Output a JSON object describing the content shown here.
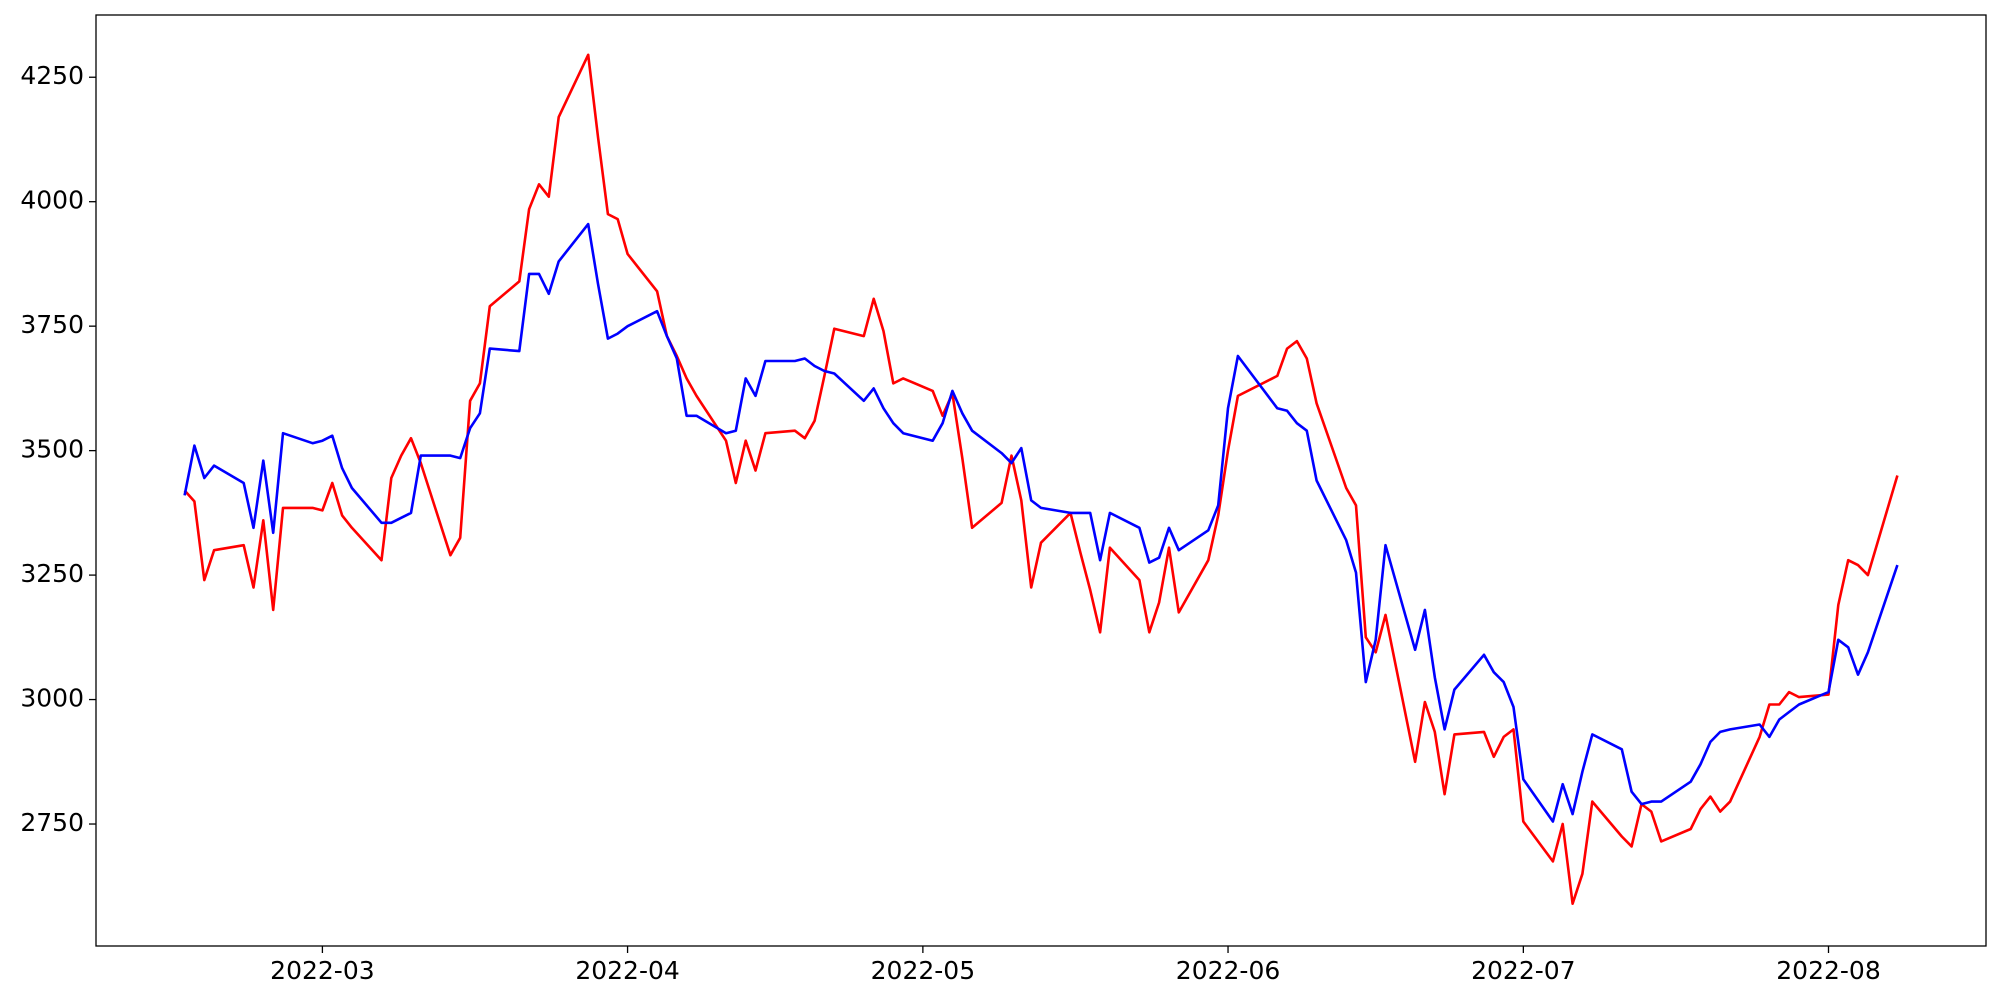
{
  "chart_data": {
    "type": "line",
    "x": [
      "2022-02-15",
      "2022-02-16",
      "2022-02-17",
      "2022-02-18",
      "2022-02-21",
      "2022-02-22",
      "2022-02-23",
      "2022-02-24",
      "2022-02-25",
      "2022-02-28",
      "2022-03-01",
      "2022-03-02",
      "2022-03-03",
      "2022-03-04",
      "2022-03-07",
      "2022-03-08",
      "2022-03-09",
      "2022-03-10",
      "2022-03-11",
      "2022-03-14",
      "2022-03-15",
      "2022-03-16",
      "2022-03-17",
      "2022-03-18",
      "2022-03-21",
      "2022-03-22",
      "2022-03-23",
      "2022-03-24",
      "2022-03-25",
      "2022-03-28",
      "2022-03-29",
      "2022-03-30",
      "2022-03-31",
      "2022-04-01",
      "2022-04-04",
      "2022-04-05",
      "2022-04-06",
      "2022-04-07",
      "2022-04-08",
      "2022-04-11",
      "2022-04-12",
      "2022-04-13",
      "2022-04-14",
      "2022-04-15",
      "2022-04-18",
      "2022-04-19",
      "2022-04-20",
      "2022-04-21",
      "2022-04-22",
      "2022-04-25",
      "2022-04-26",
      "2022-04-27",
      "2022-04-28",
      "2022-04-29",
      "2022-05-02",
      "2022-05-03",
      "2022-05-04",
      "2022-05-05",
      "2022-05-06",
      "2022-05-09",
      "2022-05-10",
      "2022-05-11",
      "2022-05-12",
      "2022-05-13",
      "2022-05-16",
      "2022-05-17",
      "2022-05-18",
      "2022-05-19",
      "2022-05-20",
      "2022-05-23",
      "2022-05-24",
      "2022-05-25",
      "2022-05-26",
      "2022-05-27",
      "2022-05-30",
      "2022-05-31",
      "2022-06-01",
      "2022-06-02",
      "2022-06-06",
      "2022-06-07",
      "2022-06-08",
      "2022-06-09",
      "2022-06-10",
      "2022-06-13",
      "2022-06-14",
      "2022-06-15",
      "2022-06-16",
      "2022-06-17",
      "2022-06-20",
      "2022-06-21",
      "2022-06-22",
      "2022-06-23",
      "2022-06-24",
      "2022-06-27",
      "2022-06-28",
      "2022-06-29",
      "2022-06-30",
      "2022-07-01",
      "2022-07-04",
      "2022-07-05",
      "2022-07-06",
      "2022-07-07",
      "2022-07-08",
      "2022-07-11",
      "2022-07-12",
      "2022-07-13",
      "2022-07-14",
      "2022-07-15",
      "2022-07-18",
      "2022-07-19",
      "2022-07-20",
      "2022-07-21",
      "2022-07-22",
      "2022-07-25",
      "2022-07-26",
      "2022-07-27",
      "2022-07-28",
      "2022-07-29",
      "2022-08-01",
      "2022-08-02",
      "2022-08-03",
      "2022-08-04",
      "2022-08-05",
      "2022-08-08"
    ],
    "series": [
      {
        "color": "#ff0000",
        "values": [
          3420,
          3398,
          3240,
          3300,
          3310,
          3225,
          3360,
          3180,
          3385,
          3385,
          3380,
          3435,
          3370,
          3345,
          3280,
          3445,
          3490,
          3525,
          3475,
          3290,
          3325,
          3600,
          3635,
          3790,
          3840,
          3985,
          4035,
          4010,
          4170,
          4295,
          4130,
          3975,
          3965,
          3895,
          3820,
          3730,
          3690,
          3645,
          3610,
          3520,
          3435,
          3520,
          3460,
          3535,
          3540,
          3525,
          3560,
          3650,
          3745,
          3730,
          3805,
          3740,
          3635,
          3645,
          3620,
          3570,
          3615,
          3485,
          3345,
          3395,
          3490,
          3400,
          3225,
          3315,
          3375,
          3295,
          3220,
          3135,
          3305,
          3240,
          3135,
          3195,
          3305,
          3175,
          3280,
          3370,
          3500,
          3610,
          3650,
          3705,
          3720,
          3685,
          3595,
          3425,
          3390,
          3125,
          3095,
          3170,
          2875,
          2995,
          2935,
          2810,
          2930,
          2935,
          2885,
          2925,
          2940,
          2755,
          2675,
          2750,
          2590,
          2650,
          2795,
          2725,
          2705,
          2790,
          2775,
          2715,
          2740,
          2780,
          2805,
          2775,
          2795,
          2925,
          2990,
          2990,
          3015,
          3005,
          3010,
          3190,
          3280,
          3270,
          3250,
          3450
        ]
      },
      {
        "color": "#0000ff",
        "values": [
          3410,
          3510,
          3445,
          3470,
          3435,
          3345,
          3480,
          3335,
          3535,
          3515,
          3520,
          3530,
          3465,
          3425,
          3355,
          3355,
          3365,
          3375,
          3490,
          3490,
          3485,
          3545,
          3575,
          3705,
          3700,
          3855,
          3855,
          3815,
          3880,
          3955,
          3835,
          3725,
          3735,
          3750,
          3780,
          3730,
          3685,
          3570,
          3570,
          3535,
          3540,
          3645,
          3610,
          3680,
          3680,
          3685,
          3670,
          3660,
          3655,
          3600,
          3625,
          3585,
          3555,
          3535,
          3520,
          3555,
          3620,
          3575,
          3540,
          3495,
          3475,
          3505,
          3400,
          3385,
          3375,
          3375,
          3375,
          3280,
          3375,
          3345,
          3275,
          3285,
          3345,
          3300,
          3340,
          3390,
          3585,
          3690,
          3585,
          3580,
          3555,
          3540,
          3440,
          3320,
          3255,
          3035,
          3120,
          3310,
          3100,
          3180,
          3045,
          2940,
          3020,
          3090,
          3055,
          3035,
          2985,
          2840,
          2755,
          2830,
          2770,
          2855,
          2930,
          2900,
          2815,
          2790,
          2795,
          2795,
          2835,
          2870,
          2915,
          2935,
          2940,
          2950,
          2925,
          2960,
          2975,
          2990,
          3015,
          3120,
          3105,
          3050,
          3095,
          3270
        ]
      }
    ],
    "xlim": [
      "2022-02-06",
      "2022-08-17"
    ],
    "xticks": [
      {
        "value": "2022-03-01",
        "label": "2022-03"
      },
      {
        "value": "2022-04-01",
        "label": "2022-04"
      },
      {
        "value": "2022-05-01",
        "label": "2022-05"
      },
      {
        "value": "2022-06-01",
        "label": "2022-06"
      },
      {
        "value": "2022-07-01",
        "label": "2022-07"
      },
      {
        "value": "2022-08-01",
        "label": "2022-08"
      }
    ],
    "ylim": [
      2505,
      4375
    ],
    "yticks": [
      2750,
      3000,
      3250,
      3500,
      3750,
      4000,
      4250
    ],
    "grid": false
  }
}
